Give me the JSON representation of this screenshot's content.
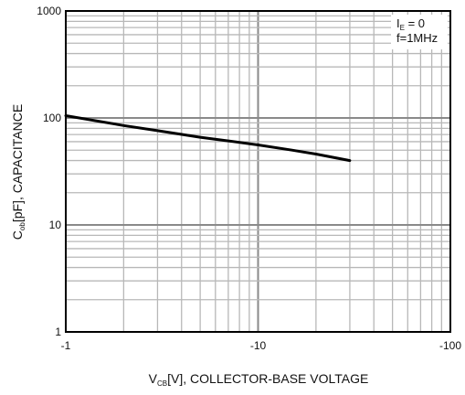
{
  "chart_data": {
    "type": "line",
    "x_scale": "log",
    "y_scale": "log",
    "xlim": [
      -1,
      -100
    ],
    "ylim": [
      1,
      1000
    ],
    "x_ticks": [
      "-1",
      "-10",
      "-100"
    ],
    "y_ticks": [
      "1",
      "10",
      "100",
      "1000"
    ],
    "grid": true,
    "xlabel": {
      "main": "V",
      "sub": "CB",
      "rest": "[V], COLLECTOR-BASE VOLTAGE"
    },
    "ylabel": {
      "main": "C",
      "sub": "ob",
      "rest": "[pF], CAPACITANCE"
    },
    "annotation": {
      "line1": {
        "main": "I",
        "sub": "E",
        "rest": " = 0"
      },
      "line2": "f=1MHz"
    },
    "series": [
      {
        "x": [
          -1,
          -2,
          -3,
          -5,
          -7,
          -10,
          -15,
          -20,
          -30
        ],
        "y": [
          105,
          85,
          76,
          66,
          61,
          56,
          50,
          46,
          40
        ]
      }
    ]
  }
}
